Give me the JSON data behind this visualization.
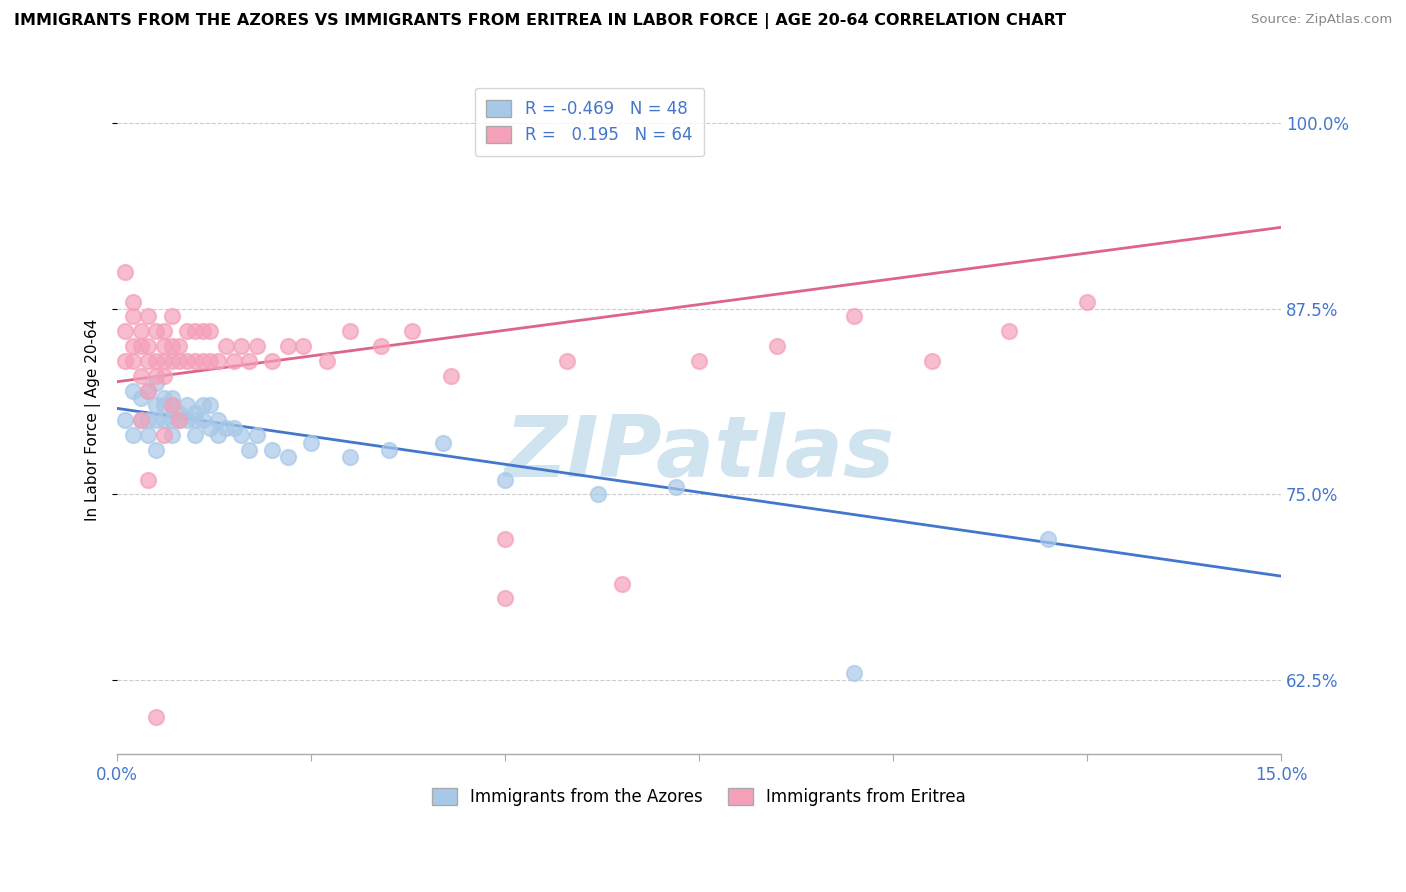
{
  "title": "IMMIGRANTS FROM THE AZORES VS IMMIGRANTS FROM ERITREA IN LABOR FORCE | AGE 20-64 CORRELATION CHART",
  "source": "Source: ZipAtlas.com",
  "ylabel": "In Labor Force | Age 20-64",
  "xlim": [
    0.0,
    0.15
  ],
  "ylim": [
    0.575,
    1.025
  ],
  "xticks": [
    0.0,
    0.025,
    0.05,
    0.075,
    0.1,
    0.125,
    0.15
  ],
  "xticklabels": [
    "0.0%",
    "",
    "",
    "",
    "",
    "",
    "15.0%"
  ],
  "yticks": [
    0.625,
    0.75,
    0.875,
    1.0
  ],
  "yticklabels": [
    "62.5%",
    "75.0%",
    "87.5%",
    "100.0%"
  ],
  "color_azores": "#a8c8e8",
  "color_eritrea": "#f4a0b8",
  "color_azores_line": "#4477cc",
  "color_eritrea_line": "#dd6688",
  "watermark": "ZIPatlas",
  "watermark_color": "#d0e4f0",
  "background_color": "#ffffff",
  "tick_color": "#4477cc",
  "azores_x": [
    0.001,
    0.002,
    0.002,
    0.003,
    0.003,
    0.004,
    0.004,
    0.004,
    0.005,
    0.005,
    0.005,
    0.005,
    0.006,
    0.006,
    0.006,
    0.007,
    0.007,
    0.007,
    0.007,
    0.008,
    0.008,
    0.009,
    0.009,
    0.01,
    0.01,
    0.01,
    0.011,
    0.011,
    0.012,
    0.012,
    0.013,
    0.013,
    0.014,
    0.015,
    0.016,
    0.017,
    0.018,
    0.02,
    0.022,
    0.025,
    0.03,
    0.035,
    0.042,
    0.05,
    0.062,
    0.072,
    0.095,
    0.12
  ],
  "azores_y": [
    0.8,
    0.82,
    0.79,
    0.815,
    0.8,
    0.82,
    0.8,
    0.79,
    0.825,
    0.81,
    0.8,
    0.78,
    0.815,
    0.8,
    0.81,
    0.81,
    0.8,
    0.815,
    0.79,
    0.805,
    0.8,
    0.8,
    0.81,
    0.8,
    0.79,
    0.805,
    0.8,
    0.81,
    0.795,
    0.81,
    0.8,
    0.79,
    0.795,
    0.795,
    0.79,
    0.78,
    0.79,
    0.78,
    0.775,
    0.785,
    0.775,
    0.78,
    0.785,
    0.76,
    0.75,
    0.755,
    0.63,
    0.72
  ],
  "eritrea_x": [
    0.001,
    0.001,
    0.002,
    0.002,
    0.002,
    0.003,
    0.003,
    0.003,
    0.004,
    0.004,
    0.004,
    0.004,
    0.005,
    0.005,
    0.005,
    0.006,
    0.006,
    0.006,
    0.006,
    0.007,
    0.007,
    0.007,
    0.008,
    0.008,
    0.009,
    0.009,
    0.01,
    0.01,
    0.011,
    0.011,
    0.012,
    0.012,
    0.013,
    0.014,
    0.015,
    0.016,
    0.017,
    0.018,
    0.02,
    0.022,
    0.024,
    0.027,
    0.03,
    0.034,
    0.038,
    0.043,
    0.05,
    0.058,
    0.065,
    0.075,
    0.085,
    0.095,
    0.105,
    0.115,
    0.125,
    0.001,
    0.002,
    0.003,
    0.004,
    0.005,
    0.006,
    0.007,
    0.008,
    0.05
  ],
  "eritrea_y": [
    0.84,
    0.86,
    0.84,
    0.87,
    0.85,
    0.85,
    0.83,
    0.86,
    0.84,
    0.87,
    0.85,
    0.82,
    0.84,
    0.86,
    0.83,
    0.85,
    0.84,
    0.86,
    0.83,
    0.85,
    0.84,
    0.87,
    0.85,
    0.84,
    0.84,
    0.86,
    0.84,
    0.86,
    0.84,
    0.86,
    0.84,
    0.86,
    0.84,
    0.85,
    0.84,
    0.85,
    0.84,
    0.85,
    0.84,
    0.85,
    0.85,
    0.84,
    0.86,
    0.85,
    0.86,
    0.83,
    0.72,
    0.84,
    0.69,
    0.84,
    0.85,
    0.87,
    0.84,
    0.86,
    0.88,
    0.9,
    0.88,
    0.8,
    0.76,
    0.6,
    0.79,
    0.81,
    0.8,
    0.68
  ],
  "azores_trend_x": [
    0.0,
    0.15
  ],
  "azores_trend_y": [
    0.808,
    0.695
  ],
  "eritrea_trend_x": [
    0.0,
    0.15
  ],
  "eritrea_trend_y": [
    0.826,
    0.93
  ]
}
